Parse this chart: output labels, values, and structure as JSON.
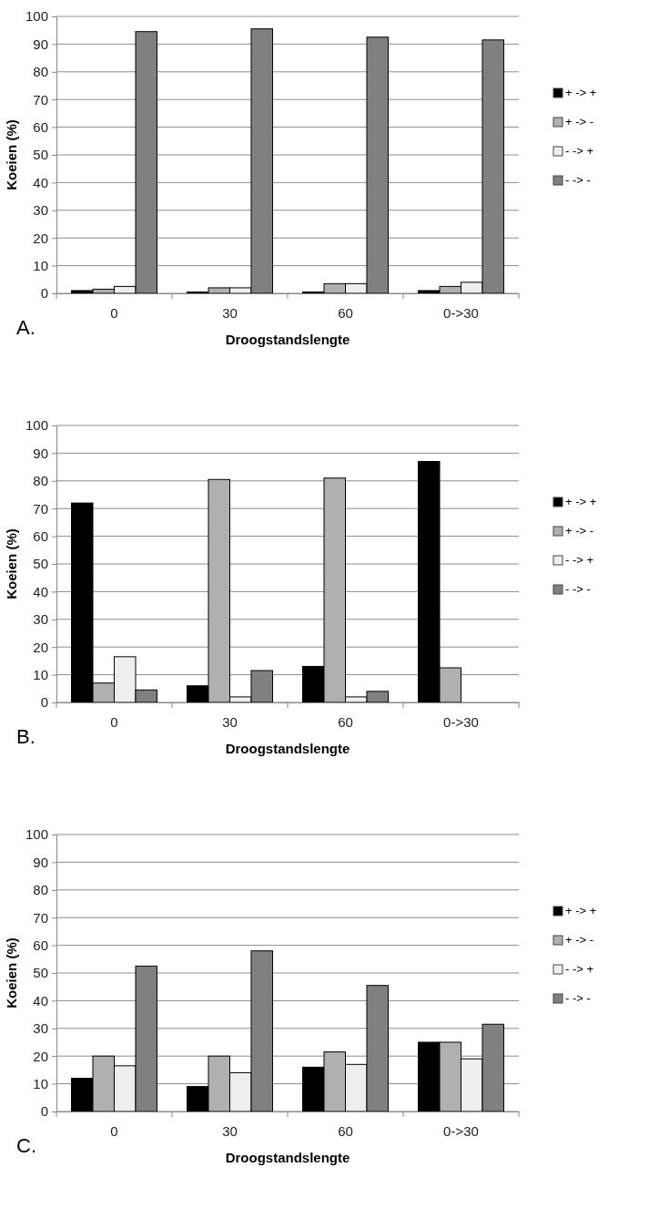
{
  "chart_data": [
    {
      "type": "bar",
      "categories": [
        "0",
        "30",
        "60",
        "0->30"
      ],
      "xlabel": "Droogstandslengte",
      "ylabel": "Koeien (%)",
      "ylim": [
        0,
        100
      ],
      "yticks": [
        0,
        10,
        20,
        30,
        40,
        50,
        60,
        70,
        80,
        90,
        100
      ],
      "grid": "y",
      "legend": "right",
      "annotations": [
        "A."
      ],
      "series": [
        {
          "name": "+ -> +",
          "color": "#000000",
          "values": [
            1,
            0.5,
            0.5,
            1
          ]
        },
        {
          "name": "+ -> -",
          "color": "#b0b0b0",
          "values": [
            1.5,
            2,
            3.5,
            2.5
          ]
        },
        {
          "name": "- -> +",
          "color": "#eeeeee",
          "values": [
            2.5,
            2,
            3.5,
            4
          ]
        },
        {
          "name": "- -> -",
          "color": "#808080",
          "values": [
            94.5,
            95.5,
            92.5,
            91.5
          ]
        }
      ]
    },
    {
      "type": "bar",
      "categories": [
        "0",
        "30",
        "60",
        "0->30"
      ],
      "xlabel": "Droogstandslengte",
      "ylabel": "Koeien (%)",
      "ylim": [
        0,
        100
      ],
      "yticks": [
        0,
        10,
        20,
        30,
        40,
        50,
        60,
        70,
        80,
        90,
        100
      ],
      "grid": "y",
      "legend": "right",
      "annotations": [
        "B."
      ],
      "series": [
        {
          "name": "+ -> +",
          "color": "#000000",
          "values": [
            72,
            6,
            13,
            87
          ]
        },
        {
          "name": "+ -> -",
          "color": "#b0b0b0",
          "values": [
            7,
            80.5,
            81,
            12.5
          ]
        },
        {
          "name": "- -> +",
          "color": "#eeeeee",
          "values": [
            16.5,
            2,
            2,
            0
          ]
        },
        {
          "name": "- -> -",
          "color": "#808080",
          "values": [
            4.5,
            11.5,
            4,
            0
          ]
        }
      ]
    },
    {
      "type": "bar",
      "categories": [
        "0",
        "30",
        "60",
        "0->30"
      ],
      "xlabel": "Droogstandslengte",
      "ylabel": "Koeien (%)",
      "ylim": [
        0,
        100
      ],
      "yticks": [
        0,
        10,
        20,
        30,
        40,
        50,
        60,
        70,
        80,
        90,
        100
      ],
      "grid": "y",
      "legend": "right",
      "annotations": [
        "C."
      ],
      "series": [
        {
          "name": "+ -> +",
          "color": "#000000",
          "values": [
            12,
            9,
            16,
            25
          ]
        },
        {
          "name": "+ -> -",
          "color": "#b0b0b0",
          "values": [
            20,
            20,
            21.5,
            25
          ]
        },
        {
          "name": "- -> +",
          "color": "#eeeeee",
          "values": [
            16.5,
            14,
            17,
            19
          ]
        },
        {
          "name": "- -> -",
          "color": "#808080",
          "values": [
            52.5,
            58,
            45.5,
            31.5
          ]
        }
      ]
    }
  ]
}
